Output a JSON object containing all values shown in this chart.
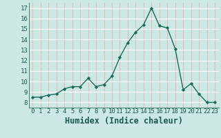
{
  "x": [
    0,
    1,
    2,
    3,
    4,
    5,
    6,
    7,
    8,
    9,
    10,
    11,
    12,
    13,
    14,
    15,
    16,
    17,
    18,
    19,
    20,
    21,
    22,
    23
  ],
  "y": [
    8.5,
    8.5,
    8.7,
    8.8,
    9.3,
    9.5,
    9.5,
    10.3,
    9.5,
    9.7,
    10.5,
    12.3,
    13.7,
    14.7,
    15.4,
    17.0,
    15.3,
    15.1,
    13.1,
    9.2,
    9.8,
    8.8,
    8.0,
    8.0
  ],
  "xlabel": "Humidex (Indice chaleur)",
  "ylim": [
    7.5,
    17.5
  ],
  "xlim": [
    -0.5,
    23.5
  ],
  "yticks": [
    8,
    9,
    10,
    11,
    12,
    13,
    14,
    15,
    16,
    17
  ],
  "xticks": [
    0,
    1,
    2,
    3,
    4,
    5,
    6,
    7,
    8,
    9,
    10,
    11,
    12,
    13,
    14,
    15,
    16,
    17,
    18,
    19,
    20,
    21,
    22,
    23
  ],
  "line_color": "#1a6b5a",
  "marker": "D",
  "marker_size": 2.2,
  "bg_color": "#cce8e4",
  "grid_y_color": "#ffffff",
  "grid_x_color": "#e8b8b8",
  "tick_fontsize": 6.5,
  "xlabel_fontsize": 8.5
}
